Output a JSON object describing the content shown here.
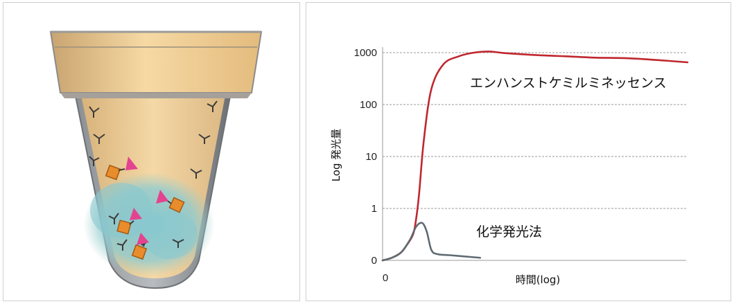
{
  "colors": {
    "enhanced": "#c0262d",
    "chemi": "#5f6b73",
    "grid": "#9a9a9a",
    "cup_fill": "#e8c48f",
    "well_blue": "#8ccad1",
    "antibody": "#3b3b3b",
    "enzyme": "#e98c2b",
    "substrate": "#e3438f"
  },
  "icons": [
    "cup-illustration",
    "antibody-icon",
    "enzyme-icon",
    "substrate-icon"
  ],
  "chart_data": {
    "type": "line",
    "title": "",
    "xlabel": "時間(log)",
    "ylabel": "Log 発光量",
    "y_scale": "log",
    "ytick_labels": [
      "1000",
      "100",
      "10",
      "1",
      "0"
    ],
    "xtick_labels": [
      "0"
    ],
    "grid": true,
    "series": [
      {
        "name": "エンハンストケミルミネッセンス",
        "x": [
          0,
          0.3,
          0.6,
          0.8,
          1.0,
          1.1,
          1.2,
          1.35,
          1.6,
          2.0,
          2.5,
          3.0,
          3.5,
          4.0,
          5.0,
          6.0,
          7.0,
          8.0,
          9.0,
          10.0
        ],
        "y": [
          0,
          0.05,
          0.15,
          0.3,
          0.5,
          0.8,
          2,
          20,
          200,
          600,
          850,
          1000,
          1050,
          980,
          900,
          850,
          800,
          780,
          720,
          650
        ]
      },
      {
        "name": "化学発光法",
        "x": [
          0,
          0.3,
          0.6,
          0.9,
          1.1,
          1.3,
          1.45,
          1.6,
          1.8,
          2.2,
          3.0,
          3.2
        ],
        "y": [
          0,
          0.05,
          0.15,
          0.4,
          0.65,
          0.72,
          0.55,
          0.2,
          0.12,
          0.1,
          0.06,
          0.05
        ]
      }
    ]
  }
}
